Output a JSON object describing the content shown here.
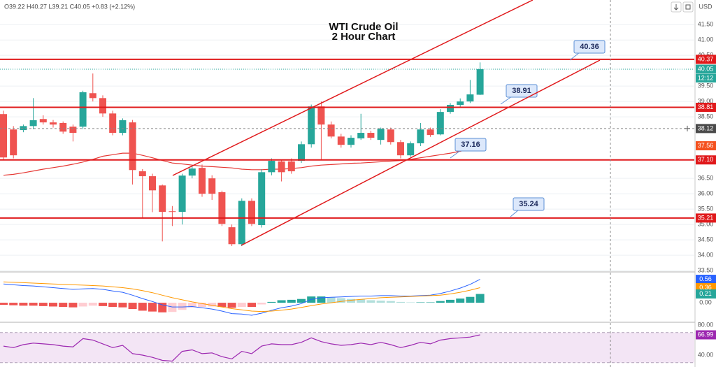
{
  "chart_data": [
    {
      "type": "candlestick",
      "header": "O39.22 H40.27 L39.21 C40.05 +0.83 (+2.12%)",
      "title": "WTI Crude Oil",
      "subtitle": "2 Hour Chart",
      "currency": "USD",
      "countdown": "12:12",
      "open": [
        38.59,
        38.09,
        38.07,
        38.2,
        38.43,
        38.32,
        38.3,
        38.18,
        38.18,
        39.27,
        39.11,
        38.61,
        37.98,
        38.32,
        36.73,
        36.57,
        36.27,
        35.43,
        35.41,
        36.59,
        36.84,
        36.5,
        36.05,
        34.91,
        34.36,
        35.77,
        34.98,
        36.7,
        37.05,
        37.05,
        37.07,
        37.61,
        38.84,
        38.25,
        37.86,
        37.59,
        37.8,
        37.98,
        37.75,
        38.09,
        37.68,
        37.25,
        37.64,
        38.09,
        37.93,
        38.66,
        38.89,
        39.0,
        39.22
      ],
      "high": [
        38.7,
        38.2,
        38.25,
        39.11,
        38.55,
        38.4,
        38.35,
        38.25,
        39.35,
        39.91,
        39.2,
        38.7,
        38.45,
        38.4,
        36.8,
        36.65,
        36.3,
        35.6,
        36.65,
        36.9,
        36.95,
        36.6,
        36.1,
        35.0,
        35.85,
        35.85,
        36.8,
        37.15,
        37.1,
        37.15,
        37.7,
        38.9,
        39.0,
        38.35,
        37.95,
        37.9,
        38.6,
        38.05,
        38.15,
        38.15,
        37.75,
        37.7,
        38.3,
        38.15,
        38.75,
        38.95,
        39.1,
        39.7,
        40.27
      ],
      "low": [
        37.1,
        37.15,
        38.0,
        38.1,
        38.25,
        38.15,
        37.95,
        37.7,
        38.1,
        39.0,
        38.5,
        37.9,
        37.9,
        36.3,
        35.2,
        35.4,
        34.45,
        34.95,
        35.0,
        36.5,
        35.9,
        35.8,
        34.95,
        34.3,
        34.3,
        34.95,
        34.9,
        36.6,
        36.4,
        36.65,
        37.0,
        37.5,
        37.1,
        37.8,
        37.5,
        37.5,
        37.75,
        37.75,
        37.6,
        37.6,
        37.15,
        37.2,
        37.55,
        37.85,
        37.9,
        38.6,
        38.8,
        38.95,
        39.21
      ],
      "close": [
        37.18,
        37.25,
        38.2,
        38.39,
        38.32,
        38.25,
        38.02,
        37.98,
        39.3,
        39.11,
        38.61,
        37.98,
        38.39,
        36.77,
        36.57,
        36.11,
        35.41,
        35.41,
        36.59,
        36.82,
        36.0,
        36.0,
        35.02,
        34.36,
        35.77,
        35.02,
        36.7,
        37.07,
        36.7,
        36.73,
        37.61,
        38.84,
        38.25,
        37.86,
        37.59,
        37.82,
        37.98,
        37.82,
        38.11,
        37.68,
        37.25,
        37.64,
        38.09,
        37.91,
        38.66,
        38.89,
        39.0,
        39.23,
        40.05
      ],
      "up_color": "#26a69a",
      "down_color": "#ef5350",
      "moving_average": {
        "color": "#e53935",
        "values": [
          36.6,
          36.63,
          36.68,
          36.74,
          36.8,
          36.85,
          36.9,
          36.96,
          37.03,
          37.12,
          37.22,
          37.27,
          37.32,
          37.32,
          37.25,
          37.17,
          37.08,
          37.0,
          36.97,
          36.93,
          36.9,
          36.88,
          36.86,
          36.84,
          36.8,
          36.78,
          36.78,
          36.8,
          36.8,
          36.82,
          36.85,
          36.9,
          36.93,
          36.95,
          36.97,
          36.99,
          37.0,
          37.02,
          37.04,
          37.06,
          37.08,
          37.12,
          37.17,
          37.22,
          37.27,
          37.32,
          37.38,
          37.45,
          37.56
        ]
      },
      "levels": [
        40.37,
        38.81,
        {
          "value": 37.1,
          "label": "37.10"
        },
        35.21
      ],
      "level_color": "#e0191b",
      "annotations": [
        40.36,
        38.91,
        37.16,
        35.24
      ],
      "crosshair_price": 38.12,
      "ylim": [
        33.48,
        42.3
      ],
      "yticks": [
        {
          "value": 41.5,
          "label": "41.50"
        },
        {
          "value": 41,
          "label": "41.00"
        },
        {
          "value": 40.5,
          "label": "40.50"
        },
        {
          "value": 39.5,
          "label": "39.50"
        },
        {
          "value": 39,
          "label": "39.00"
        },
        {
          "value": 38.5,
          "label": "38.50"
        },
        {
          "value": 36.5,
          "label": "36.50"
        },
        {
          "value": 36,
          "label": "36.00"
        },
        {
          "value": 35.5,
          "label": "35.50"
        },
        {
          "value": 35,
          "label": "35.00"
        },
        {
          "value": 34.5,
          "label": "34.50"
        },
        {
          "value": 34,
          "label": "34.00"
        },
        {
          "value": 33.5,
          "label": "33.50"
        }
      ],
      "grid": true
    },
    {
      "type": "macd",
      "series": [
        {
          "color": "#2962ff",
          "values": [
            0.45,
            0.43,
            0.41,
            0.4,
            0.38,
            0.36,
            0.34,
            0.32,
            0.33,
            0.34,
            0.32,
            0.28,
            0.25,
            0.18,
            0.1,
            0.03,
            -0.05,
            -0.1,
            -0.1,
            -0.09,
            -0.12,
            -0.15,
            -0.2,
            -0.26,
            -0.27,
            -0.3,
            -0.25,
            -0.18,
            -0.12,
            -0.08,
            -0.02,
            0.08,
            0.12,
            0.13,
            0.14,
            0.15,
            0.16,
            0.16,
            0.17,
            0.17,
            0.16,
            0.16,
            0.17,
            0.18,
            0.22,
            0.28,
            0.35,
            0.44,
            0.56
          ]
        },
        {
          "color": "#ff9800",
          "values": [
            0.5,
            0.49,
            0.48,
            0.47,
            0.46,
            0.45,
            0.44,
            0.43,
            0.42,
            0.41,
            0.4,
            0.38,
            0.36,
            0.33,
            0.29,
            0.24,
            0.18,
            0.12,
            0.07,
            0.02,
            -0.02,
            -0.06,
            -0.1,
            -0.14,
            -0.17,
            -0.2,
            -0.21,
            -0.2,
            -0.18,
            -0.15,
            -0.11,
            -0.07,
            -0.03,
            0.0,
            0.03,
            0.06,
            0.08,
            0.1,
            0.12,
            0.13,
            0.14,
            0.15,
            0.16,
            0.17,
            0.18,
            0.21,
            0.25,
            0.3,
            0.36
          ]
        }
      ],
      "histogram": {
        "color": "#26a69a",
        "values": [
          -0.05,
          -0.06,
          -0.07,
          -0.07,
          -0.08,
          -0.09,
          -0.1,
          -0.11,
          -0.09,
          -0.07,
          -0.08,
          -0.1,
          -0.11,
          -0.15,
          -0.19,
          -0.21,
          -0.23,
          -0.22,
          -0.17,
          -0.11,
          -0.1,
          -0.09,
          -0.1,
          -0.12,
          -0.1,
          -0.1,
          -0.04,
          0.02,
          0.06,
          0.07,
          0.09,
          0.15,
          0.15,
          0.13,
          0.11,
          0.09,
          0.08,
          0.06,
          0.05,
          0.04,
          0.02,
          0.01,
          0.01,
          0.01,
          0.04,
          0.07,
          0.1,
          0.14,
          0.21
        ]
      },
      "ylim": [
        -0.45,
        0.72
      ],
      "yticks": [
        {
          "value": 0,
          "label": "0.00"
        }
      ]
    },
    {
      "type": "rsi",
      "color": "#9c27b0",
      "values": [
        52,
        50,
        54,
        56,
        55,
        54,
        52,
        51,
        62,
        60,
        55,
        50,
        53,
        42,
        40,
        37,
        33,
        32,
        45,
        47,
        42,
        43,
        38,
        35,
        45,
        42,
        52,
        55,
        54,
        54,
        57,
        63,
        58,
        55,
        53,
        54,
        56,
        54,
        57,
        54,
        50,
        53,
        57,
        55,
        60,
        62,
        63,
        64,
        66.99
      ],
      "band": [
        30,
        70
      ],
      "ylim": [
        27,
        82.8
      ],
      "yticks": [
        {
          "value": 80,
          "label": "80.00"
        },
        {
          "value": 40,
          "label": "40.00"
        }
      ]
    }
  ]
}
